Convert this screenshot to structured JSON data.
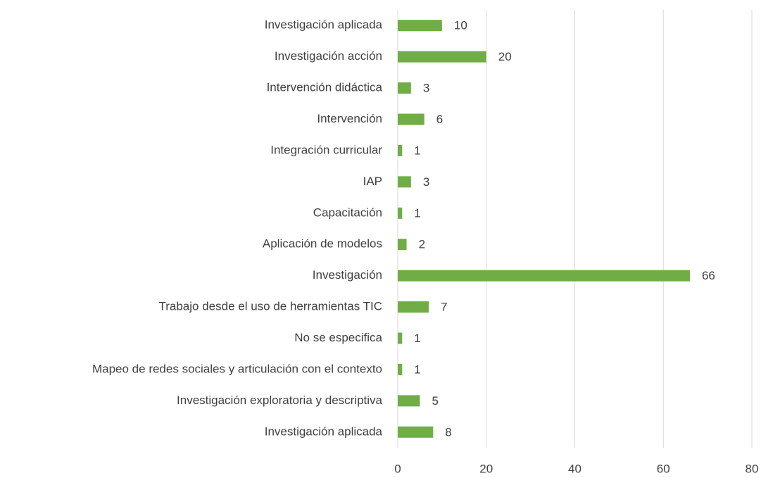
{
  "chart_data": {
    "type": "barh",
    "categories": [
      "Investigación aplicada",
      "Investigación acción",
      "Intervención didáctica",
      "Intervención",
      "Integración curricular",
      "IAP",
      "Capacitación",
      "Aplicación de modelos",
      "Investigación",
      "Trabajo desde el uso de herramientas TIC",
      "No se especifica",
      "Mapeo de redes sociales y articulación con el contexto",
      "Investigación exploratoria y descriptiva",
      "Investigación aplicada"
    ],
    "values": [
      10,
      20,
      3,
      6,
      1,
      3,
      1,
      2,
      66,
      7,
      1,
      1,
      5,
      8
    ],
    "color": "#70ad47",
    "xlim": [
      0,
      80
    ],
    "xticks": [
      0,
      20,
      40,
      60,
      80
    ],
    "grid": true
  }
}
